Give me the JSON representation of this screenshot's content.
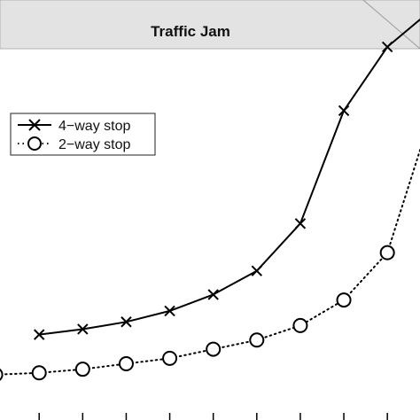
{
  "chart_data": {
    "type": "line",
    "title": "",
    "xlabel": "",
    "ylabel": "",
    "annotation": "Traffic Jam",
    "xlim": [
      -0.9,
      8.75
    ],
    "ylim": [
      0,
      100
    ],
    "grid": false,
    "legend_position": "top-left",
    "series": [
      {
        "name": "4−way stop",
        "line_style": "solid",
        "marker": "x",
        "color": "#000000",
        "x": [
          0,
          1,
          2,
          3,
          4,
          5,
          6,
          7,
          8,
          9
        ],
        "y": [
          21.5,
          23.0,
          25.0,
          28.0,
          32.5,
          39.0,
          52.0,
          83.0,
          100.5,
          110.5
        ]
      },
      {
        "name": "2−way stop",
        "line_style": "dotted",
        "marker": "circle",
        "color": "#000000",
        "x": [
          -1,
          0,
          1,
          2,
          3,
          4,
          5,
          6,
          7,
          8,
          9
        ],
        "y": [
          10.5,
          11.0,
          12.0,
          13.5,
          15.0,
          17.5,
          20.0,
          24.0,
          31.0,
          44.0,
          81.5
        ]
      }
    ]
  }
}
